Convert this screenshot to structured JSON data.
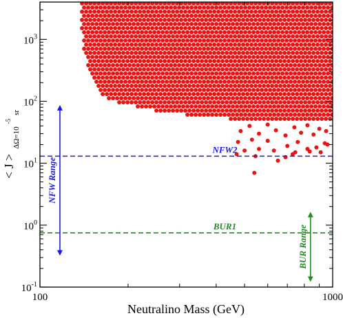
{
  "chart_data": {
    "type": "scatter",
    "xlabel": "Neutralino Mass (GeV)",
    "ylabel": "< J >",
    "ylabel_subscript": "ΔΩ=10",
    "ylabel_sup": "-5",
    "ylabel_unit": "sr",
    "x_scale": "log",
    "y_scale": "log",
    "xlim": [
      100,
      1000
    ],
    "ylim": [
      0.1,
      4000
    ],
    "x_ticks": [
      {
        "value": 100,
        "label": "100"
      },
      {
        "value": 1000,
        "label": "1000"
      }
    ],
    "y_ticks": [
      {
        "value": 0.1,
        "base": "10",
        "exp": "-1"
      },
      {
        "value": 1,
        "base": "10",
        "exp": "0"
      },
      {
        "value": 10,
        "base": "10",
        "exp": "1"
      },
      {
        "value": 100,
        "base": "10",
        "exp": "2"
      },
      {
        "value": 1000,
        "base": "10",
        "exp": "3"
      }
    ],
    "grid": false,
    "dense_region": {
      "color": "#ee1111",
      "x_range": [
        137,
        1000
      ],
      "y_max": 4000,
      "lower_boundary": [
        [
          137,
          3000
        ],
        [
          140,
          900
        ],
        [
          145,
          380
        ],
        [
          152,
          200
        ],
        [
          162,
          125
        ],
        [
          175,
          100
        ],
        [
          200,
          90
        ],
        [
          240,
          72
        ],
        [
          300,
          62
        ],
        [
          380,
          56
        ],
        [
          450,
          52
        ],
        [
          550,
          50
        ],
        [
          650,
          50
        ],
        [
          800,
          50
        ],
        [
          1000,
          50
        ]
      ]
    },
    "series": [
      {
        "color": "#ee1111",
        "points": [
          [
            485,
            33
          ],
          [
            520,
            40
          ],
          [
            560,
            30
          ],
          [
            600,
            42
          ],
          [
            640,
            34
          ],
          [
            690,
            28
          ],
          [
            740,
            38
          ],
          [
            780,
            31
          ],
          [
            820,
            41
          ],
          [
            860,
            29
          ],
          [
            900,
            36
          ],
          [
            950,
            33
          ],
          [
            475,
            22
          ],
          [
            530,
            24
          ],
          [
            600,
            23
          ],
          [
            700,
            19
          ],
          [
            760,
            22
          ],
          [
            880,
            18
          ],
          [
            940,
            21
          ],
          [
            500,
            16
          ],
          [
            560,
            17
          ],
          [
            630,
            16
          ],
          [
            820,
            17
          ],
          [
            910,
            15
          ],
          [
            470,
            14
          ],
          [
            545,
            13
          ],
          [
            730,
            14
          ],
          [
            540,
            7
          ],
          [
            650,
            11
          ],
          [
            690,
            12.5
          ],
          [
            745,
            15
          ],
          [
            835,
            15.5
          ],
          [
            960,
            20
          ]
        ]
      }
    ],
    "reference_lines": [
      {
        "label": "NFW2",
        "y": 13,
        "color": "#1a1ae6",
        "style": "dashed"
      },
      {
        "label": "BUR1",
        "y": 0.75,
        "color": "#228b22",
        "style": "dashed"
      }
    ],
    "ranges": [
      {
        "label": "NFW Range",
        "x": 117,
        "y_low": 0.33,
        "y_high": 85,
        "color": "#1a1ae6"
      },
      {
        "label": "BUR Range",
        "x": 840,
        "y_low": 0.125,
        "y_high": 1.6,
        "color": "#228b22"
      }
    ]
  }
}
